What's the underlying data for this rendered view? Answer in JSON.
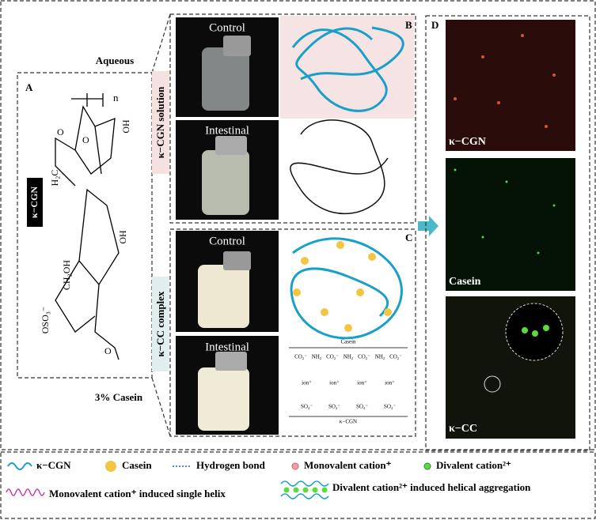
{
  "panel_a": {
    "label": "A",
    "tag": "κ−CGN",
    "aqueous": "Aqueous",
    "casein_note": "3%  Casein",
    "structure": {
      "n": "n",
      "oh_top": "OH",
      "ring_o": "O",
      "h2c": "H₂C",
      "oh_mid": "OH",
      "ch2oh": "CH₂OH",
      "oso3": "OSO₃⁻",
      "o_bottom": "O"
    }
  },
  "panel_b": {
    "label": "B",
    "side_label": "κ−CGN solution",
    "photo_top": "Control",
    "photo_bottom": "Intestinal"
  },
  "panel_c": {
    "label": "C",
    "side_label": "κ−CC complex",
    "photo_top": "Control",
    "photo_bottom": "Intestinal",
    "scheme": {
      "top": "Casein",
      "row1": [
        "CO₂⁻",
        "NH₂",
        "CO₂⁻",
        "NH₂",
        "CO₂⁻",
        "NH₂",
        "CO₂⁻"
      ],
      "row2": [
        "ion⁺",
        "ion⁺",
        "ion⁺",
        "ion⁺"
      ],
      "row3": [
        "SO₄⁻",
        "SO₄⁻",
        "SO₄⁻",
        "SO₄⁻"
      ],
      "bottom": "κ−CGN"
    }
  },
  "panel_d": {
    "label": "D",
    "images": [
      "κ−CGN",
      "Casein",
      "κ−CC"
    ]
  },
  "legend": {
    "cgn": "κ−CGN",
    "casein": "Casein",
    "hbond": "Hydrogen bond",
    "mono": "Monovalent cation⁺",
    "di": "Divalent cation²⁺",
    "mono_helix": "Monovalent cation⁺ induced single helix",
    "di_helix": "Divalent cation²⁺ induced helical aggregation"
  }
}
